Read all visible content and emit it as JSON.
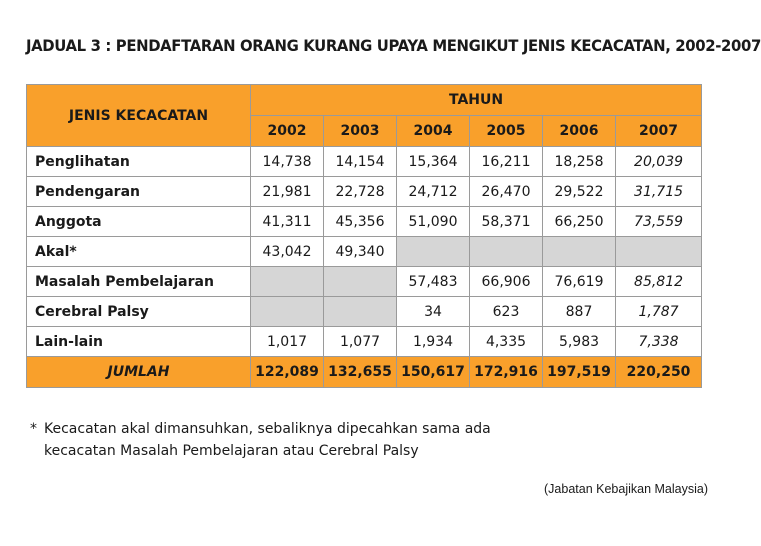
{
  "title": "JADUAL 3 : PENDAFTARAN ORANG KURANG UPAYA MENGIKUT JENIS KECACATAN, 2002-2007",
  "table": {
    "category_header": "JENIS KECACATAN",
    "year_group_header": "TAHUN",
    "years": [
      "2002",
      "2003",
      "2004",
      "2005",
      "2006",
      "2007"
    ],
    "rows": [
      {
        "label": "Penglihatan",
        "values": [
          "14,738",
          "14,154",
          "15,364",
          "16,211",
          "18,258",
          "20,039"
        ]
      },
      {
        "label": "Pendengaran",
        "values": [
          "21,981",
          "22,728",
          "24,712",
          "26,470",
          "29,522",
          "31,715"
        ]
      },
      {
        "label": "Anggota",
        "values": [
          "41,311",
          "45,356",
          "51,090",
          "58,371",
          "66,250",
          "73,559"
        ]
      },
      {
        "label": "Akal*",
        "values": [
          "43,042",
          "49,340",
          "",
          "",
          "",
          ""
        ]
      },
      {
        "label": "Masalah Pembelajaran",
        "values": [
          "",
          "",
          "57,483",
          "66,906",
          "76,619",
          "85,812"
        ]
      },
      {
        "label": "Cerebral Palsy",
        "values": [
          "",
          "",
          "34",
          "623",
          "887",
          "1,787"
        ]
      },
      {
        "label": "Lain-lain",
        "values": [
          "1,017",
          "1,077",
          "1,934",
          "4,335",
          "5,983",
          "7,338"
        ]
      }
    ],
    "total": {
      "label": "JUMLAH",
      "values": [
        "122,089",
        "132,655",
        "150,617",
        "172,916",
        "197,519",
        "220,250"
      ]
    },
    "colors": {
      "header_bg": "#f9a02b",
      "empty_cell_bg": "#d6d6d6",
      "border": "#9a9a9a"
    }
  },
  "footnote": {
    "marker": "*",
    "line1": "Kecacatan akal dimansuhkan, sebaliknya dipecahkan sama ada",
    "line2": "kecacatan Masalah Pembelajaran atau Cerebral Palsy"
  },
  "source": "(Jabatan Kebajikan Malaysia)"
}
